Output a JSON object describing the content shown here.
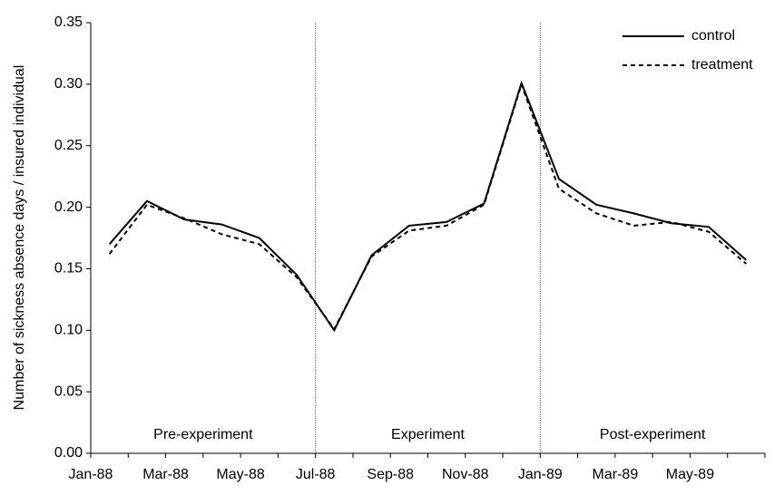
{
  "chart_data": {
    "type": "line",
    "y_label": "Number of sickness absence days / insured individual",
    "categories": [
      "Jan-88",
      null,
      "Mar-88",
      null,
      "May-88",
      null,
      "Jul-88",
      null,
      "Sep-88",
      null,
      "Nov-88",
      null,
      "Jan-89",
      null,
      "Mar-89",
      null,
      "May-89",
      null
    ],
    "series": [
      {
        "name": "control",
        "color": "#000000",
        "dash": "solid",
        "values": [
          0.17,
          0.205,
          0.19,
          0.186,
          0.175,
          0.145,
          0.1,
          0.161,
          0.185,
          0.188,
          0.203,
          0.301,
          0.223,
          0.202,
          0.195,
          0.187,
          0.184,
          0.157
        ]
      },
      {
        "name": "treatment",
        "color": "#000000",
        "dash": "dashed",
        "values": [
          0.162,
          0.202,
          0.191,
          0.178,
          0.17,
          0.143,
          0.101,
          0.16,
          0.181,
          0.185,
          0.202,
          0.3,
          0.215,
          0.195,
          0.185,
          0.188,
          0.18,
          0.154
        ]
      }
    ],
    "phases": [
      {
        "label": "Pre-experiment",
        "start": "Jan-88"
      },
      {
        "label": "Experiment",
        "start": "Jul-88"
      },
      {
        "label": "Post-experiment",
        "start": "Jan-89"
      }
    ],
    "ylim": [
      0,
      0.35
    ],
    "yticks": [
      {
        "value": 0,
        "label": "0.00"
      },
      {
        "value": 0.05,
        "label": "0.05"
      },
      {
        "value": 0.1,
        "label": "0.10"
      },
      {
        "value": 0.15,
        "label": "0.15"
      },
      {
        "value": 0.2,
        "label": "0.20"
      },
      {
        "value": 0.25,
        "label": "0.25"
      },
      {
        "value": 0.3,
        "label": "0.30"
      },
      {
        "value": 0.35,
        "label": "0.35"
      }
    ],
    "grid": false,
    "legend": "upper right"
  }
}
